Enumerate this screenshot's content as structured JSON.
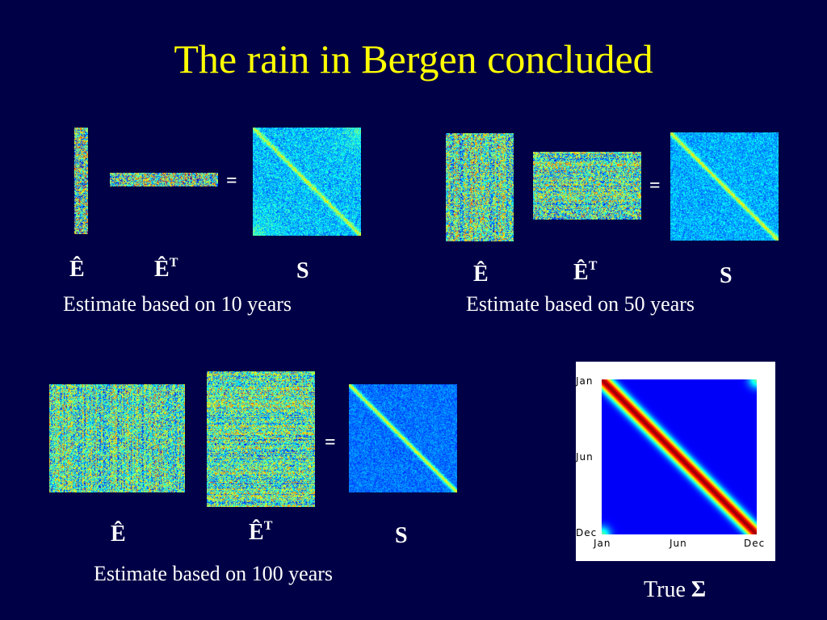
{
  "title": "The rain in Bergen concluded",
  "labels": {
    "e_hat": "Ê",
    "e_hat_base": "Ê",
    "transpose": "T",
    "s": "S",
    "equals": "="
  },
  "panels": [
    {
      "caption": "Estimate based on 10 years"
    },
    {
      "caption": "Estimate based on 50 years"
    },
    {
      "caption": "Estimate based on 100 years"
    }
  ],
  "true_sigma": {
    "label": "True ",
    "symbol": "Σ",
    "y_ticks": [
      "Jan",
      "Jun",
      "Dec"
    ],
    "x_ticks": [
      "Jan",
      "Jun",
      "Dec"
    ]
  },
  "colors": {
    "background": "#000046",
    "title": "#ffff00",
    "text": "#ffffff"
  }
}
